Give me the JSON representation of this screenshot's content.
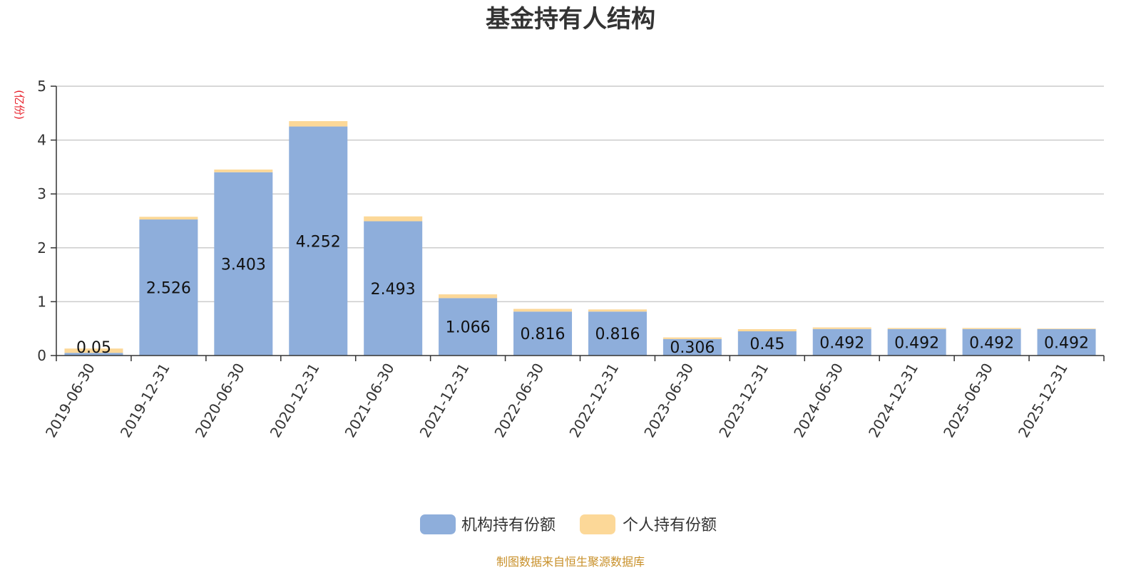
{
  "chart_data": {
    "type": "bar",
    "stacked": true,
    "title": "基金持有人结构",
    "unit_label": "(亿份)",
    "categories": [
      "2019-06-30",
      "2019-12-31",
      "2020-06-30",
      "2020-12-31",
      "2021-06-30",
      "2021-12-31",
      "2022-06-30",
      "2022-12-31",
      "2023-06-30",
      "2023-12-31",
      "2024-06-30",
      "2024-12-31",
      "2025-06-30",
      "2025-12-31"
    ],
    "series": [
      {
        "name": "机构持有份额",
        "color": "#8eaedb",
        "values": [
          0.05,
          2.526,
          3.403,
          4.252,
          2.493,
          1.066,
          0.816,
          0.816,
          0.306,
          0.45,
          0.492,
          0.492,
          0.492,
          0.492
        ],
        "labels": [
          "0.05",
          "2.526",
          "3.403",
          "4.252",
          "2.493",
          "1.066",
          "0.816",
          "0.816",
          "0.306",
          "0.45",
          "0.492",
          "0.492",
          "0.492",
          "0.492"
        ]
      },
      {
        "name": "个人持有份额",
        "color": "#fcd898",
        "values": [
          0.08,
          0.05,
          0.05,
          0.1,
          0.09,
          0.07,
          0.05,
          0.04,
          0.03,
          0.04,
          0.03,
          0.02,
          0.02,
          0.01
        ]
      }
    ],
    "ylim": [
      0,
      5
    ],
    "yticks": [
      "0",
      "1",
      "2",
      "3",
      "4",
      "5"
    ],
    "grid": true,
    "legend_position": "bottom-center",
    "source_note": "制图数据来自恒生聚源数据库",
    "unit_color": "#e8202a",
    "source_color": "#c8902a"
  }
}
